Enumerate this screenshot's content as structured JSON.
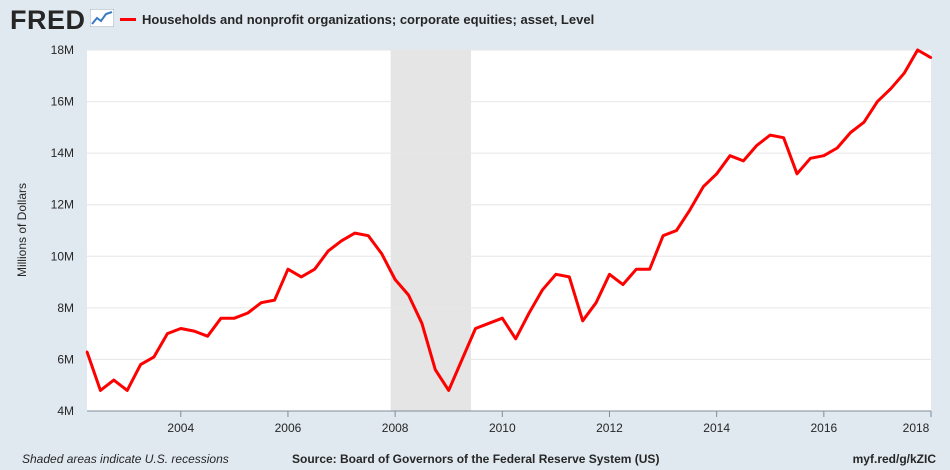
{
  "header": {
    "logo": "FRED",
    "legend_label": "Households and nonprofit organizations; corporate equities; asset, Level",
    "series_color": "#ff0000"
  },
  "footer": {
    "recession_note": "Shaded areas indicate U.S. recessions",
    "source": "Source: Board of Governors of the Federal Reserve System (US)",
    "link": "myf.red/g/kZIC"
  },
  "chart_data": {
    "type": "line",
    "title": "",
    "xlabel": "",
    "ylabel": "Millions of Dollars",
    "xlim": [
      2002.25,
      2018.0
    ],
    "ylim": [
      4,
      18
    ],
    "y_ticks": [
      4,
      6,
      8,
      10,
      12,
      14,
      16,
      18
    ],
    "y_tick_labels": [
      "4M",
      "6M",
      "8M",
      "10M",
      "12M",
      "14M",
      "16M",
      "18M"
    ],
    "x_ticks": [
      2004,
      2006,
      2008,
      2010,
      2012,
      2014,
      2016,
      2018
    ],
    "x_tick_labels": [
      "2004",
      "2006",
      "2008",
      "2010",
      "2012",
      "2014",
      "2016",
      "2018"
    ],
    "grid": "horizontal",
    "recession_shading": [
      {
        "start": "2007-12",
        "end": "2009-06"
      }
    ],
    "recession_color": "#e5e5e5",
    "series": [
      {
        "name": "Households and nonprofit organizations; corporate equities; asset, Level",
        "color": "#ff0000",
        "x": [
          "2002-04",
          "2002-07",
          "2002-10",
          "2003-01",
          "2003-04",
          "2003-07",
          "2003-10",
          "2004-01",
          "2004-04",
          "2004-07",
          "2004-10",
          "2005-01",
          "2005-04",
          "2005-07",
          "2005-10",
          "2006-01",
          "2006-04",
          "2006-07",
          "2006-10",
          "2007-01",
          "2007-04",
          "2007-07",
          "2007-10",
          "2008-01",
          "2008-04",
          "2008-07",
          "2008-10",
          "2009-01",
          "2009-04",
          "2009-07",
          "2009-10",
          "2010-01",
          "2010-04",
          "2010-07",
          "2010-10",
          "2011-01",
          "2011-04",
          "2011-07",
          "2011-10",
          "2012-01",
          "2012-04",
          "2012-07",
          "2012-10",
          "2013-01",
          "2013-04",
          "2013-07",
          "2013-10",
          "2014-01",
          "2014-04",
          "2014-07",
          "2014-10",
          "2015-01",
          "2015-04",
          "2015-07",
          "2015-10",
          "2016-01",
          "2016-04",
          "2016-07",
          "2016-10",
          "2017-01",
          "2017-04",
          "2017-07",
          "2017-10",
          "2018-01"
        ],
        "values": [
          6.3,
          4.8,
          5.2,
          4.8,
          5.8,
          6.1,
          7.0,
          7.2,
          7.1,
          6.9,
          7.6,
          7.6,
          7.8,
          8.2,
          8.3,
          9.5,
          9.2,
          9.5,
          10.2,
          10.6,
          10.9,
          10.8,
          10.1,
          9.1,
          8.5,
          7.4,
          5.6,
          4.8,
          6.0,
          7.2,
          7.4,
          7.6,
          6.8,
          7.8,
          8.7,
          9.3,
          9.2,
          7.5,
          8.2,
          9.3,
          8.9,
          9.5,
          9.5,
          10.8,
          11.0,
          11.8,
          12.7,
          13.2,
          13.9,
          13.7,
          14.3,
          14.7,
          14.6,
          13.2,
          13.8,
          13.9,
          14.2,
          14.8,
          15.2,
          16.0,
          16.5,
          17.1,
          18.0,
          17.7
        ]
      }
    ]
  }
}
